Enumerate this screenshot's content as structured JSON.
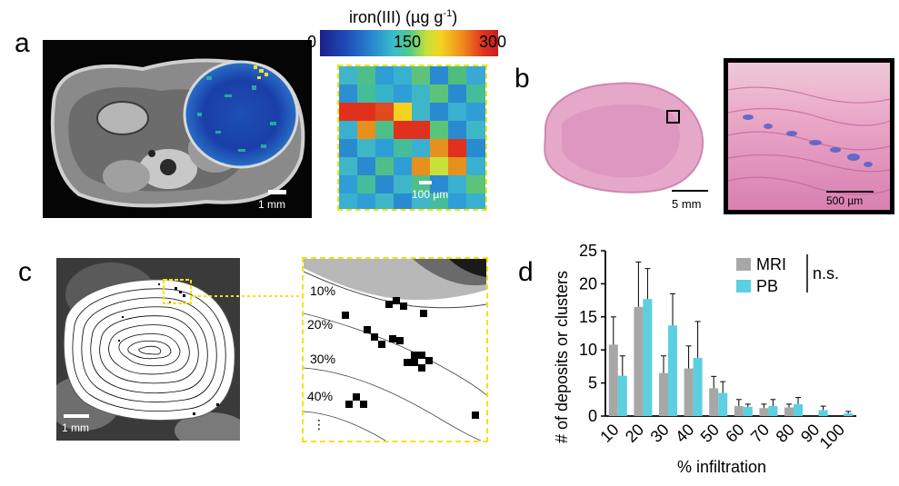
{
  "panels": {
    "a": {
      "letter": "a",
      "mri_scale": "1 mm",
      "zoom_scale": "100 µm",
      "colorbar": {
        "title": "iron(III) (µg g",
        "title_sup": "-1",
        "title_end": ")",
        "ticks": [
          "0",
          "150",
          "300"
        ]
      }
    },
    "b": {
      "letter": "b",
      "overview_scale": "5 mm",
      "zoom_scale": "500 µm"
    },
    "c": {
      "letter": "c",
      "mri_scale": "1 mm",
      "contour_labels": [
        "10%",
        "20%",
        "30%",
        "40%",
        "⋮"
      ]
    },
    "d": {
      "letter": "d"
    }
  },
  "colors": {
    "mri_gray": "#a7a7a7",
    "pb_cyan": "#5ccfe0",
    "zoom_yellow": "#f4e20d"
  },
  "chart_data": {
    "type": "bar",
    "title": "",
    "xlabel": "% infiltration",
    "ylabel": "# of deposits or clusters",
    "categories": [
      "10",
      "20",
      "30",
      "40",
      "50",
      "60",
      "70",
      "80",
      "90",
      "100"
    ],
    "ylim": [
      0,
      25
    ],
    "yticks": [
      "0",
      "5",
      "10",
      "15",
      "20",
      "25"
    ],
    "series": [
      {
        "name": "MRI",
        "values": [
          10.8,
          16.5,
          6.5,
          7.2,
          4.2,
          1.5,
          1.2,
          1.3,
          0.0,
          0.0
        ],
        "errors": [
          4.2,
          6.8,
          2.6,
          3.4,
          1.8,
          1.0,
          0.6,
          0.5,
          0.0,
          0.0
        ]
      },
      {
        "name": "PB",
        "values": [
          6.1,
          17.7,
          13.7,
          8.8,
          3.5,
          1.4,
          1.5,
          1.8,
          0.9,
          0.4
        ],
        "errors": [
          3.0,
          4.6,
          4.8,
          5.5,
          1.7,
          0.4,
          1.0,
          1.0,
          0.6,
          0.3
        ]
      }
    ],
    "legend": [
      "MRI",
      "PB"
    ],
    "annotation": "n.s."
  }
}
